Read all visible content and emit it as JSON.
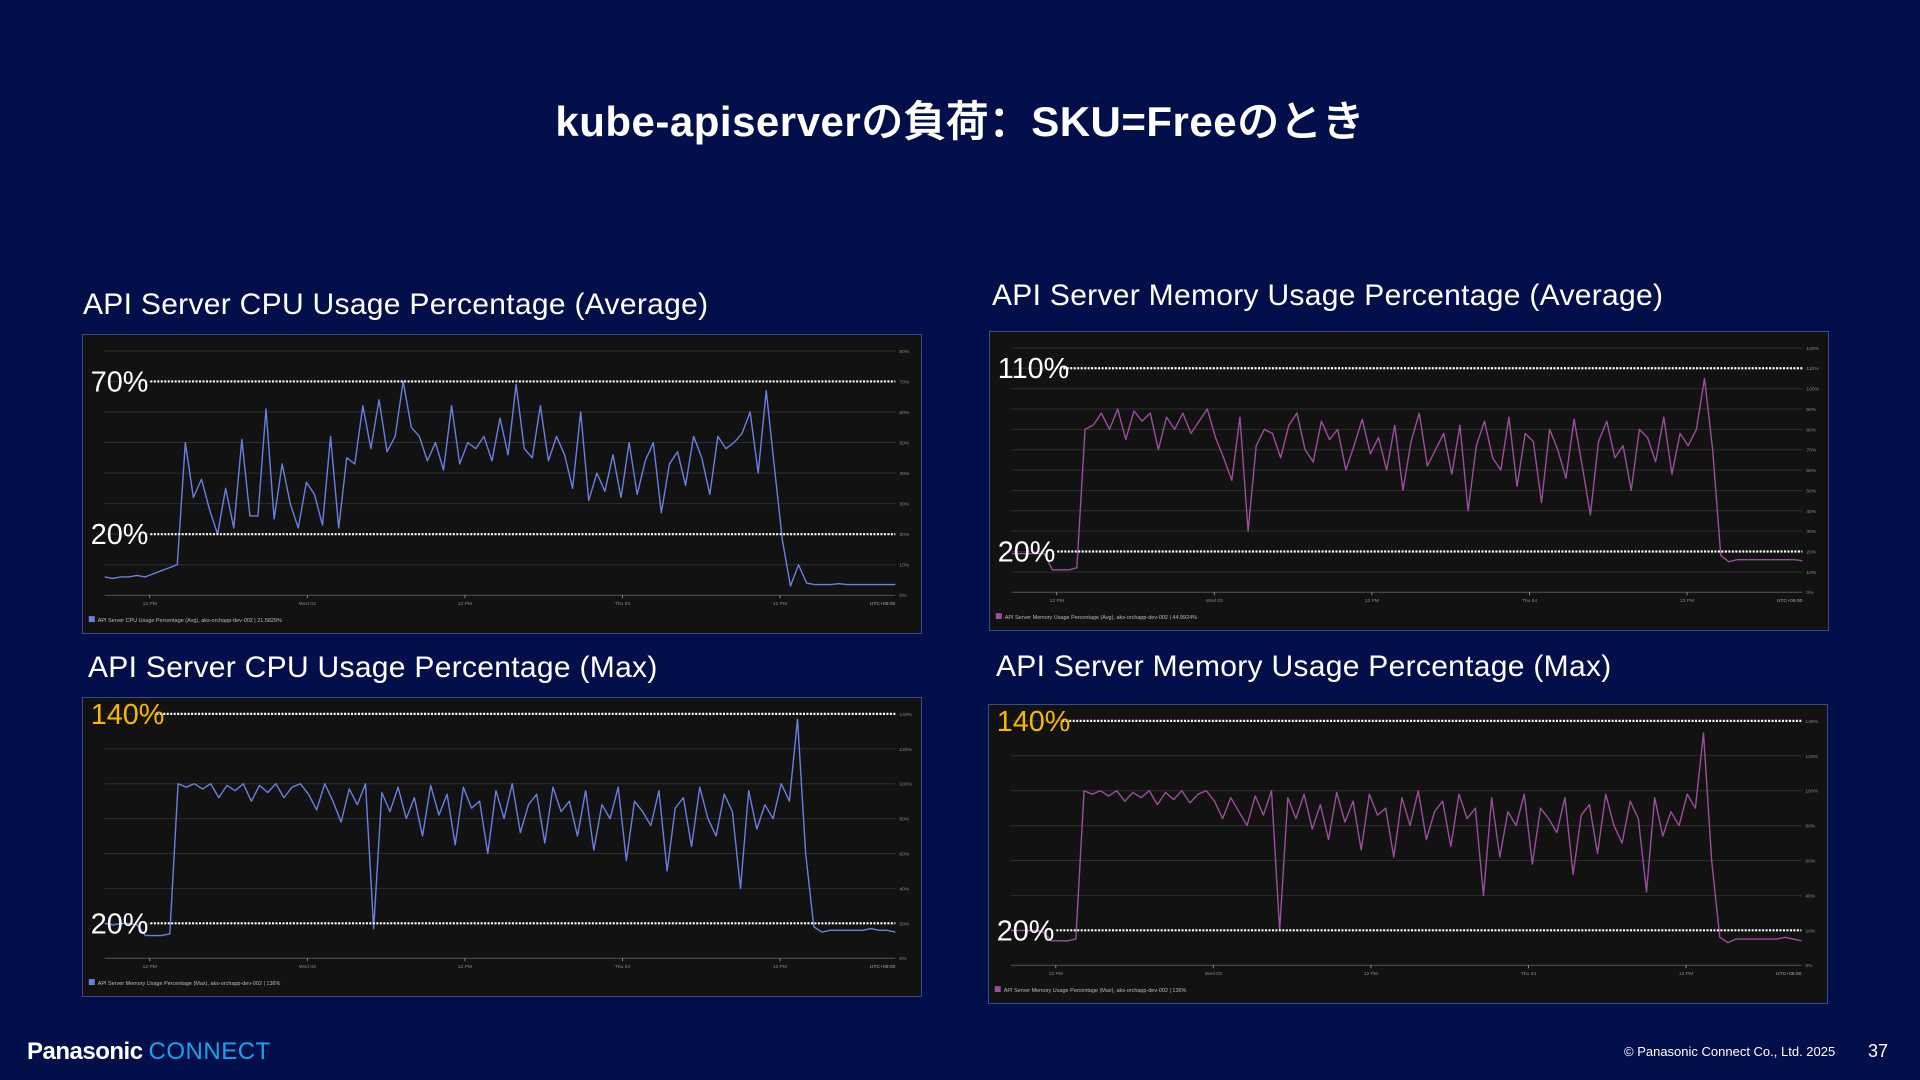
{
  "slide": {
    "title": "kube-apiserverの負荷：SKU=Freeのとき",
    "page_number": "37",
    "copyright": "© Panasonic Connect Co., Ltd. 2025",
    "logo": {
      "brand": "Panasonic",
      "product": "CONNECT"
    }
  },
  "colors": {
    "background": "#020f4b",
    "cpu_line": "#6b7fe0",
    "memory_line": "#9a4f9c",
    "highlight": "#f5b800",
    "panel": "#121212"
  },
  "chart_data": [
    {
      "id": "cpu_avg",
      "type": "line",
      "title": "API Server CPU Usage Percentage (Average)",
      "ylim": [
        0,
        80
      ],
      "ytick_step": 10,
      "x_ticks": [
        "12 PM",
        "Wed 03",
        "12 PM",
        "Thu 04",
        "12 PM"
      ],
      "timezone": "UTC+09:00",
      "grid": true,
      "legend": "API Server CPU Usage Percentage (Avg), aks-orchapp-dev-002 | 21.5829%",
      "legend_placement": "bottom-left",
      "color": "#6b7fe0",
      "annotations": [
        {
          "value": 70,
          "label": "70%",
          "color": "#ffffff"
        },
        {
          "value": 20,
          "label": "20%",
          "color": "#ffffff"
        }
      ],
      "values": [
        6,
        5.5,
        6,
        6,
        6.5,
        6,
        7,
        8,
        9,
        10,
        50,
        32,
        38,
        28,
        20,
        35,
        22,
        51,
        26,
        26,
        61,
        25,
        43,
        30,
        22,
        37,
        33,
        23,
        52,
        22,
        45,
        43,
        62,
        48,
        64,
        47,
        52,
        70,
        55,
        52,
        44,
        50,
        41,
        62,
        43,
        50,
        48,
        52,
        44,
        58,
        46,
        69,
        48,
        45,
        62,
        44,
        52,
        46,
        35,
        60,
        31,
        40,
        34,
        46,
        32,
        50,
        33,
        44,
        50,
        27,
        43,
        47,
        36,
        52,
        45,
        33,
        52,
        48,
        50,
        53,
        60,
        40,
        67,
        42,
        18,
        3,
        10,
        4,
        3.5,
        3.5,
        3.5,
        3.8,
        3.5,
        3.5,
        3.5,
        3.5,
        3.5,
        3.5,
        3.5
      ]
    },
    {
      "id": "mem_avg",
      "type": "line",
      "title": "API Server Memory Usage Percentage (Average)",
      "ylim": [
        0,
        120
      ],
      "ytick_step": 10,
      "x_ticks": [
        "12 PM",
        "Wed 03",
        "12 PM",
        "Thu 04",
        "12 PM"
      ],
      "timezone": "UTC+09:00",
      "grid": true,
      "legend": "API Server Memory Usage Percentage (Avg), aks-orchapp-dev-002 | 44.9924%",
      "legend_placement": "bottom-left",
      "color": "#9a4f9c",
      "annotations": [
        {
          "value": 110,
          "label": "110%",
          "color": "#ffffff"
        },
        {
          "value": 20,
          "label": "20%",
          "color": "#ffffff"
        }
      ],
      "values": [
        19,
        19,
        19,
        19,
        19,
        11,
        11,
        11,
        12,
        80,
        82,
        88,
        80,
        90,
        75,
        89,
        84,
        88,
        70,
        86,
        80,
        88,
        78,
        84,
        90,
        76,
        66,
        55,
        86,
        30,
        72,
        80,
        78,
        66,
        82,
        88,
        70,
        64,
        84,
        75,
        80,
        60,
        72,
        85,
        68,
        76,
        60,
        82,
        50,
        74,
        88,
        62,
        70,
        78,
        58,
        82,
        40,
        72,
        84,
        66,
        60,
        86,
        52,
        78,
        74,
        44,
        80,
        70,
        56,
        85,
        62,
        38,
        74,
        84,
        66,
        72,
        50,
        80,
        76,
        64,
        86,
        58,
        78,
        72,
        80,
        105,
        70,
        18,
        15,
        16,
        16,
        16,
        16,
        16,
        16,
        16,
        16,
        15.5
      ]
    },
    {
      "id": "cpu_max",
      "type": "line",
      "title": "API Server CPU Usage Percentage (Max)",
      "ylim": [
        0,
        140
      ],
      "ytick_step": 20,
      "x_ticks": [
        "12 PM",
        "Wed 03",
        "12 PM",
        "Thu 04",
        "12 PM"
      ],
      "timezone": "UTC+09:00",
      "grid": true,
      "legend": "API Server Memory Usage Percentage (Max), aks-orchapp-dev-002 | 136%",
      "legend_placement": "bottom-left",
      "color": "#6b7fe0",
      "annotations": [
        {
          "value": 140,
          "label": "140%",
          "color": "#f5b800"
        },
        {
          "value": 20,
          "label": "20%",
          "color": "#ffffff"
        }
      ],
      "values": [
        20,
        19,
        20,
        20,
        19,
        13,
        13,
        13,
        14,
        100,
        98,
        100,
        97,
        100,
        92,
        99,
        96,
        100,
        90,
        99,
        95,
        100,
        92,
        98,
        100,
        94,
        85,
        100,
        90,
        78,
        97,
        88,
        100,
        17,
        95,
        84,
        98,
        80,
        92,
        70,
        99,
        82,
        94,
        65,
        98,
        86,
        90,
        60,
        96,
        80,
        100,
        72,
        88,
        94,
        66,
        98,
        84,
        90,
        70,
        96,
        62,
        88,
        80,
        98,
        56,
        90,
        84,
        76,
        96,
        50,
        86,
        92,
        64,
        98,
        80,
        70,
        94,
        84,
        40,
        96,
        74,
        88,
        80,
        100,
        90,
        137,
        60,
        18,
        15,
        16,
        16,
        16,
        16,
        16,
        17,
        16,
        16,
        15
      ]
    },
    {
      "id": "mem_max",
      "type": "line",
      "title": "API Server Memory Usage Percentage (Max)",
      "ylim": [
        0,
        140
      ],
      "ytick_step": 20,
      "x_ticks": [
        "12 PM",
        "Wed 03",
        "12 PM",
        "Thu 04",
        "12 PM"
      ],
      "timezone": "UTC+09:00",
      "grid": true,
      "legend": "API Server Memory Usage Percentage (Max), aks-orchapp-dev-002 | 136%",
      "legend_placement": "bottom-left",
      "color": "#9a4f9c",
      "annotations": [
        {
          "value": 140,
          "label": "140%",
          "color": "#f5b800"
        },
        {
          "value": 20,
          "label": "20%",
          "color": "#ffffff"
        }
      ],
      "values": [
        20,
        20,
        20,
        20,
        19,
        14,
        14,
        14,
        15,
        100,
        98,
        100,
        97,
        100,
        94,
        99,
        96,
        100,
        92,
        99,
        95,
        100,
        93,
        98,
        100,
        94,
        84,
        96,
        88,
        80,
        97,
        86,
        100,
        20,
        96,
        84,
        98,
        78,
        92,
        72,
        99,
        82,
        94,
        66,
        98,
        86,
        90,
        62,
        96,
        80,
        100,
        72,
        88,
        94,
        68,
        98,
        84,
        90,
        40,
        96,
        62,
        88,
        80,
        98,
        58,
        90,
        84,
        76,
        96,
        52,
        86,
        92,
        64,
        98,
        80,
        70,
        94,
        84,
        42,
        96,
        74,
        88,
        80,
        98,
        90,
        133,
        60,
        16,
        13,
        15,
        15,
        15,
        15,
        15,
        15,
        16,
        15,
        14
      ]
    }
  ]
}
